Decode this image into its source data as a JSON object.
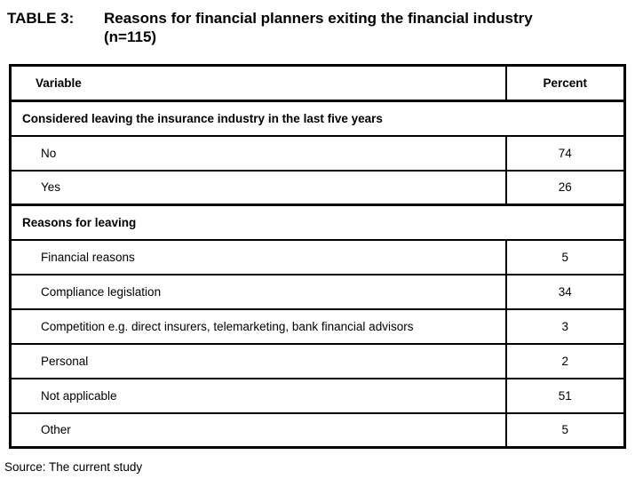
{
  "caption": {
    "label": "TABLE 3:",
    "text": "Reasons for financial planners exiting the financial industry",
    "sample_size": "(n=115)"
  },
  "table": {
    "columns": [
      "Variable",
      "Percent"
    ],
    "rows": [
      {
        "type": "section",
        "label": "Considered leaving the insurance industry in the last five years"
      },
      {
        "type": "data",
        "label": "No",
        "percent": "74"
      },
      {
        "type": "data",
        "label": "Yes",
        "percent": "26"
      },
      {
        "type": "section",
        "label": "Reasons for leaving"
      },
      {
        "type": "data",
        "label": "Financial reasons",
        "percent": "5"
      },
      {
        "type": "data",
        "label": "Compliance legislation",
        "percent": "34"
      },
      {
        "type": "data",
        "label": "Competition e.g. direct insurers, telemarketing, bank financial advisors",
        "percent": "3"
      },
      {
        "type": "data",
        "label": "Personal",
        "percent": "2"
      },
      {
        "type": "data",
        "label": "Not applicable",
        "percent": "51"
      },
      {
        "type": "data",
        "label": "Other",
        "percent": "5"
      }
    ]
  },
  "source": "Source: The current study",
  "colors": {
    "text": "#000000",
    "border": "#000000",
    "background": "#ffffff"
  },
  "chart_data": {
    "type": "table",
    "title": "TABLE 3: Reasons for financial planners exiting the financial industry (n=115)",
    "columns": [
      "Variable",
      "Percent"
    ],
    "sections": [
      {
        "header": "Considered leaving the insurance industry in the last five years",
        "rows": [
          [
            "No",
            74
          ],
          [
            "Yes",
            26
          ]
        ]
      },
      {
        "header": "Reasons for leaving",
        "rows": [
          [
            "Financial reasons",
            5
          ],
          [
            "Compliance legislation",
            34
          ],
          [
            "Competition e.g. direct insurers, telemarketing, bank financial advisors",
            3
          ],
          [
            "Personal",
            2
          ],
          [
            "Not applicable",
            51
          ],
          [
            "Other",
            5
          ]
        ]
      }
    ],
    "source": "Source: The current study"
  }
}
